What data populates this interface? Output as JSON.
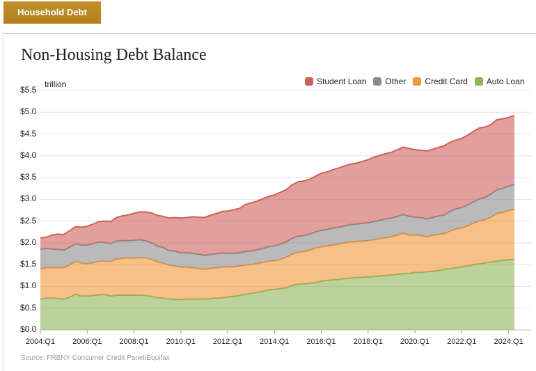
{
  "header": {
    "tab_label": "Household Debt"
  },
  "chart_data": {
    "type": "area",
    "stacked": true,
    "title": "Non-Housing Debt Balance",
    "unit_label": "trillion",
    "ylim": [
      0,
      5.5
    ],
    "yticks": [
      "$0.0",
      "$0.5",
      "$1.0",
      "$1.5",
      "$2.0",
      "$2.5",
      "$3.0",
      "$3.5",
      "$4.0",
      "$4.5",
      "$5.0",
      "$5.5"
    ],
    "xticks": [
      "2004:Q1",
      "2006:Q1",
      "2008:Q1",
      "2010:Q1",
      "2012:Q1",
      "2014:Q1",
      "2016:Q1",
      "2018:Q1",
      "2020:Q1",
      "2022:Q1",
      "2024:Q1"
    ],
    "x_start": "2004:Q1",
    "x_end": "2024:Q2",
    "grid": true,
    "legend_position": "top-right",
    "series": [
      {
        "name": "Auto Loan",
        "color": "#8db45a",
        "values": [
          0.71,
          0.73,
          0.73,
          0.72,
          0.71,
          0.75,
          0.82,
          0.78,
          0.78,
          0.79,
          0.81,
          0.81,
          0.78,
          0.8,
          0.8,
          0.8,
          0.8,
          0.8,
          0.79,
          0.77,
          0.74,
          0.73,
          0.71,
          0.7,
          0.7,
          0.71,
          0.71,
          0.71,
          0.71,
          0.72,
          0.73,
          0.74,
          0.76,
          0.77,
          0.79,
          0.82,
          0.84,
          0.86,
          0.89,
          0.92,
          0.93,
          0.95,
          0.97,
          1.02,
          1.05,
          1.06,
          1.07,
          1.09,
          1.12,
          1.14,
          1.15,
          1.16,
          1.18,
          1.19,
          1.2,
          1.21,
          1.22,
          1.23,
          1.24,
          1.25,
          1.26,
          1.28,
          1.29,
          1.3,
          1.32,
          1.32,
          1.34,
          1.35,
          1.36,
          1.39,
          1.41,
          1.43,
          1.45,
          1.47,
          1.5,
          1.52,
          1.54,
          1.56,
          1.58,
          1.6,
          1.61,
          1.62
        ]
      },
      {
        "name": "Credit Card",
        "color": "#f0963a",
        "values": [
          0.69,
          0.7,
          0.7,
          0.71,
          0.72,
          0.74,
          0.75,
          0.75,
          0.74,
          0.75,
          0.77,
          0.77,
          0.79,
          0.83,
          0.84,
          0.85,
          0.85,
          0.86,
          0.87,
          0.85,
          0.82,
          0.8,
          0.77,
          0.77,
          0.74,
          0.73,
          0.72,
          0.7,
          0.68,
          0.69,
          0.7,
          0.7,
          0.69,
          0.68,
          0.68,
          0.67,
          0.66,
          0.66,
          0.66,
          0.66,
          0.66,
          0.67,
          0.7,
          0.72,
          0.73,
          0.74,
          0.76,
          0.79,
          0.79,
          0.79,
          0.8,
          0.81,
          0.82,
          0.83,
          0.83,
          0.83,
          0.83,
          0.84,
          0.86,
          0.87,
          0.88,
          0.9,
          0.93,
          0.88,
          0.86,
          0.85,
          0.8,
          0.82,
          0.83,
          0.82,
          0.86,
          0.89,
          0.89,
          0.92,
          0.95,
          0.98,
          0.99,
          1.03,
          1.09,
          1.1,
          1.13,
          1.15
        ]
      },
      {
        "name": "Other",
        "color": "#8c8c8c",
        "values": [
          0.45,
          0.44,
          0.43,
          0.42,
          0.4,
          0.41,
          0.41,
          0.42,
          0.43,
          0.44,
          0.44,
          0.43,
          0.41,
          0.41,
          0.41,
          0.4,
          0.41,
          0.41,
          0.39,
          0.38,
          0.37,
          0.36,
          0.34,
          0.34,
          0.33,
          0.33,
          0.33,
          0.33,
          0.32,
          0.32,
          0.32,
          0.32,
          0.31,
          0.31,
          0.3,
          0.31,
          0.31,
          0.32,
          0.32,
          0.33,
          0.34,
          0.35,
          0.35,
          0.36,
          0.37,
          0.37,
          0.37,
          0.37,
          0.38,
          0.38,
          0.39,
          0.39,
          0.39,
          0.4,
          0.4,
          0.41,
          0.41,
          0.42,
          0.42,
          0.43,
          0.43,
          0.43,
          0.43,
          0.43,
          0.41,
          0.41,
          0.41,
          0.41,
          0.43,
          0.43,
          0.45,
          0.46,
          0.47,
          0.48,
          0.49,
          0.51,
          0.52,
          0.53,
          0.55,
          0.55,
          0.56,
          0.57
        ]
      },
      {
        "name": "Student Loan",
        "color": "#cf5f5a",
        "values": [
          0.26,
          0.26,
          0.32,
          0.35,
          0.36,
          0.38,
          0.39,
          0.41,
          0.43,
          0.45,
          0.47,
          0.49,
          0.51,
          0.54,
          0.57,
          0.59,
          0.62,
          0.64,
          0.66,
          0.69,
          0.7,
          0.72,
          0.75,
          0.77,
          0.8,
          0.81,
          0.84,
          0.85,
          0.87,
          0.9,
          0.92,
          0.96,
          0.97,
          1.0,
          1.02,
          1.08,
          1.11,
          1.12,
          1.14,
          1.16,
          1.17,
          1.19,
          1.2,
          1.23,
          1.25,
          1.25,
          1.26,
          1.28,
          1.31,
          1.32,
          1.34,
          1.36,
          1.38,
          1.39,
          1.4,
          1.42,
          1.45,
          1.48,
          1.49,
          1.5,
          1.51,
          1.53,
          1.55,
          1.56,
          1.55,
          1.55,
          1.56,
          1.57,
          1.57,
          1.59,
          1.59,
          1.58,
          1.59,
          1.6,
          1.62,
          1.63,
          1.61,
          1.6,
          1.61,
          1.6,
          1.58,
          1.59
        ]
      }
    ]
  },
  "source": "Source: FRBNY Consumer Credit Panel/Equifax"
}
